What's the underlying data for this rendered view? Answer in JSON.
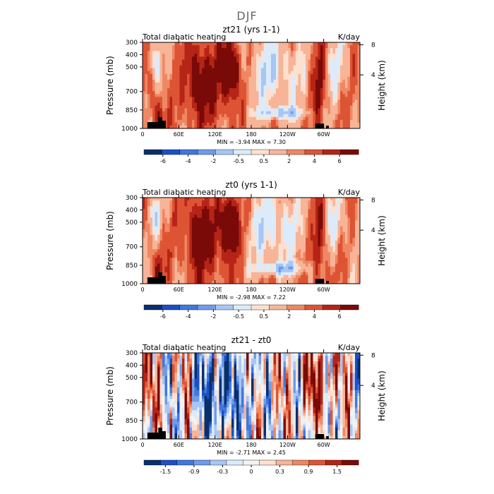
{
  "figure_title": "DJF",
  "colors": {
    "rd11": [
      "#08306b",
      "#1c4fc7",
      "#3f78de",
      "#6f9bea",
      "#a9c6f3",
      "#dcebfa",
      "#fde0d0",
      "#f7b497",
      "#ef8763",
      "#dd5434",
      "#b52416",
      "#7a0a08"
    ],
    "rd13": [
      "#08306b",
      "#1c4fc7",
      "#3f78de",
      "#6f9bea",
      "#a9c6f3",
      "#dcebfa",
      "#f3f3f3",
      "#fde0d0",
      "#f7b497",
      "#ef8763",
      "#dd5434",
      "#b52416",
      "#7a0a08"
    ],
    "land": "#000000"
  },
  "chart_data": [
    {
      "type": "heatmap",
      "title": "zt21 (yrs 1-1)",
      "subtitle_left": "Total diabatic heating",
      "subtitle_right": "K/day",
      "ylabel": "Pressure (mb)",
      "ylabel_right": "Height (km)",
      "x_ticks": [
        "0",
        "60E",
        "120E",
        "180",
        "120W",
        "60W"
      ],
      "x_tick_values": [
        0,
        60,
        120,
        180,
        240,
        300
      ],
      "xlim": [
        0,
        360
      ],
      "y_ticks": [
        "300",
        "400",
        "500",
        "700",
        "850",
        "1000"
      ],
      "y_tick_values": [
        300,
        400,
        500,
        700,
        850,
        1000
      ],
      "ylim": [
        1000,
        300
      ],
      "right_ticks": [
        "8",
        "4"
      ],
      "right_tick_values": [
        8,
        4
      ],
      "stats": "MIN =    -3.94   MAX =     7.30",
      "min": -3.94,
      "max": 7.3,
      "colorbar_labels": [
        "-6",
        "-4",
        "-2",
        "-0.5",
        "0.5",
        "2",
        "4",
        "6"
      ],
      "colorbar_levels": [
        -6,
        -5,
        -4,
        -3,
        -2,
        -1,
        -0.5,
        0.5,
        1,
        2,
        3,
        4,
        5,
        6
      ],
      "variant": "zt21"
    },
    {
      "type": "heatmap",
      "title": "zt0 (yrs 1-1)",
      "subtitle_left": "Total diabatic heating",
      "subtitle_right": "K/day",
      "ylabel": "Pressure (mb)",
      "ylabel_right": "Height (km)",
      "x_ticks": [
        "0",
        "60E",
        "120E",
        "180",
        "120W",
        "60W"
      ],
      "x_tick_values": [
        0,
        60,
        120,
        180,
        240,
        300
      ],
      "xlim": [
        0,
        360
      ],
      "y_ticks": [
        "300",
        "400",
        "500",
        "700",
        "850",
        "1000"
      ],
      "y_tick_values": [
        300,
        400,
        500,
        700,
        850,
        1000
      ],
      "ylim": [
        1000,
        300
      ],
      "right_ticks": [
        "8",
        "4"
      ],
      "right_tick_values": [
        8,
        4
      ],
      "stats": "MIN =    -2.98   MAX =     7.22",
      "min": -2.98,
      "max": 7.22,
      "colorbar_labels": [
        "-6",
        "-4",
        "-2",
        "-0.5",
        "0.5",
        "2",
        "4",
        "6"
      ],
      "colorbar_levels": [
        -6,
        -5,
        -4,
        -3,
        -2,
        -1,
        -0.5,
        0.5,
        1,
        2,
        3,
        4,
        5,
        6
      ],
      "variant": "zt0"
    },
    {
      "type": "heatmap",
      "title": "zt21 - zt0",
      "subtitle_left": "Total diabatic heating",
      "subtitle_right": "K/day",
      "ylabel": "Pressure (mb)",
      "ylabel_right": "Height (km)",
      "x_ticks": [
        "0",
        "60E",
        "120E",
        "180",
        "120W",
        "60W"
      ],
      "x_tick_values": [
        0,
        60,
        120,
        180,
        240,
        300
      ],
      "xlim": [
        0,
        360
      ],
      "y_ticks": [
        "300",
        "400",
        "500",
        "700",
        "850",
        "1000"
      ],
      "y_tick_values": [
        300,
        400,
        500,
        700,
        850,
        1000
      ],
      "ylim": [
        1000,
        300
      ],
      "right_ticks": [
        "8",
        "4"
      ],
      "right_tick_values": [
        8,
        4
      ],
      "stats": "MIN =    -2.71   MAX =     2.45",
      "min": -2.71,
      "max": 2.45,
      "colorbar_labels": [
        "-1.5",
        "-0.9",
        "-0.3",
        "0",
        "0.3",
        "0.9",
        "1.5"
      ],
      "colorbar_levels": [
        -1.8,
        -1.5,
        -1.2,
        -0.9,
        -0.6,
        -0.3,
        0,
        0.3,
        0.6,
        0.9,
        1.2,
        1.5,
        1.8
      ],
      "variant": "diff"
    }
  ]
}
